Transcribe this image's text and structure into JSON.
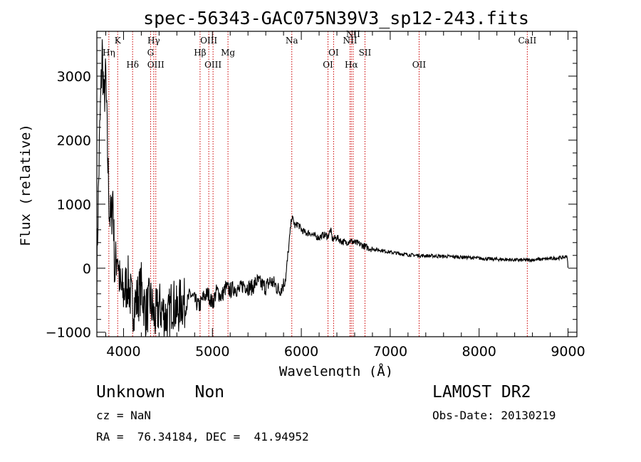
{
  "chart_data": {
    "type": "line",
    "title": "spec-56343-GAC075N39V3_sp12-243.fits",
    "xlabel": "Wavelength (Å)",
    "ylabel": "Flux (relative)",
    "xlim": [
      3700,
      9100
    ],
    "ylim": [
      -1070,
      3700
    ],
    "x_ticks": [
      4000,
      5000,
      6000,
      7000,
      8000,
      9000
    ],
    "y_ticks": [
      -1000,
      0,
      1000,
      2000,
      3000
    ],
    "x_tick_labels": [
      "4000",
      "5000",
      "6000",
      "7000",
      "8000",
      "9000"
    ],
    "y_tick_labels": [
      "−1000",
      "0",
      "1000",
      "2000",
      "3000"
    ],
    "grid": false,
    "line_color": "#000000",
    "marker_color": "#cc0000",
    "spectrum": {
      "x": [
        3700,
        3730,
        3760,
        3780,
        3800,
        3820,
        3840,
        3860,
        3880,
        3900,
        3930,
        3960,
        4000,
        4050,
        4100,
        4150,
        4200,
        4250,
        4300,
        4350,
        4400,
        4450,
        4500,
        4550,
        4600,
        4650,
        4700,
        4750,
        4800,
        4850,
        4900,
        4950,
        5000,
        5050,
        5100,
        5150,
        5200,
        5250,
        5300,
        5350,
        5400,
        5450,
        5500,
        5550,
        5600,
        5650,
        5700,
        5750,
        5800,
        5830,
        5850,
        5870,
        5890,
        5910,
        5930,
        5960,
        6000,
        6050,
        6100,
        6150,
        6200,
        6250,
        6300,
        6330,
        6350,
        6400,
        6450,
        6500,
        6550,
        6600,
        6650,
        6700,
        6750,
        6800,
        6850,
        6900,
        7000,
        7100,
        7200,
        7300,
        7400,
        7500,
        7600,
        7700,
        7800,
        7900,
        8000,
        8100,
        8200,
        8300,
        8400,
        8500,
        8600,
        8700,
        8800,
        8900,
        8960,
        8990,
        9000
      ],
      "y": [
        0,
        2000,
        3400,
        2600,
        3000,
        1800,
        900,
        700,
        1200,
        -100,
        300,
        -300,
        -400,
        -200,
        -600,
        -500,
        -300,
        -700,
        -500,
        -800,
        -600,
        -700,
        -800,
        -500,
        -700,
        -500,
        -600,
        -400,
        -500,
        -600,
        -450,
        -400,
        -550,
        -350,
        -450,
        -300,
        -350,
        -300,
        -350,
        -250,
        -300,
        -300,
        -200,
        -250,
        -300,
        -200,
        -250,
        -350,
        -250,
        -100,
        200,
        500,
        800,
        750,
        650,
        700,
        600,
        550,
        550,
        500,
        480,
        520,
        500,
        600,
        450,
        480,
        420,
        400,
        430,
        400,
        380,
        350,
        320,
        300,
        290,
        280,
        250,
        230,
        210,
        200,
        195,
        190,
        185,
        180,
        175,
        165,
        155,
        145,
        140,
        135,
        130,
        125,
        130,
        140,
        150,
        160,
        170,
        200,
        0
      ]
    },
    "lines": [
      {
        "label": "Hη",
        "wave": 3835,
        "row": 2
      },
      {
        "label": "K",
        "wave": 3934,
        "row": 1
      },
      {
        "label": "Hδ",
        "wave": 4102,
        "row": 3
      },
      {
        "label": "Hγ",
        "wave": 4340,
        "row": 1
      },
      {
        "label": "G",
        "wave": 4304,
        "row": 2
      },
      {
        "label": "OIII",
        "wave": 4363,
        "row": 3
      },
      {
        "label": "OIII",
        "wave": 4959,
        "row": 1
      },
      {
        "label": "Hβ",
        "wave": 4861,
        "row": 2
      },
      {
        "label": "OIII",
        "wave": 5007,
        "row": 3
      },
      {
        "label": "Mg",
        "wave": 5175,
        "row": 2
      },
      {
        "label": "Na",
        "wave": 5893,
        "row": 1
      },
      {
        "label": "OI",
        "wave": 6363,
        "row": 2
      },
      {
        "label": "OI",
        "wave": 6300,
        "row": 3
      },
      {
        "label": "NII",
        "wave": 6548,
        "row": 1
      },
      {
        "label": "NII",
        "wave": 6583,
        "row": 0
      },
      {
        "label": "SII",
        "wave": 6716,
        "row": 2
      },
      {
        "label": "Hα",
        "wave": 6563,
        "row": 3
      },
      {
        "label": "OII",
        "wave": 7325,
        "row": 3
      },
      {
        "label": "CaII",
        "wave": 8542,
        "row": 1
      }
    ]
  },
  "footer": {
    "class_text": "Unknown   Non",
    "survey": "LAMOST DR2",
    "cz": "cz = NaN",
    "obs_date": "Obs-Date: 20130219",
    "coords": "RA =  76.34184, DEC =  41.94952"
  }
}
